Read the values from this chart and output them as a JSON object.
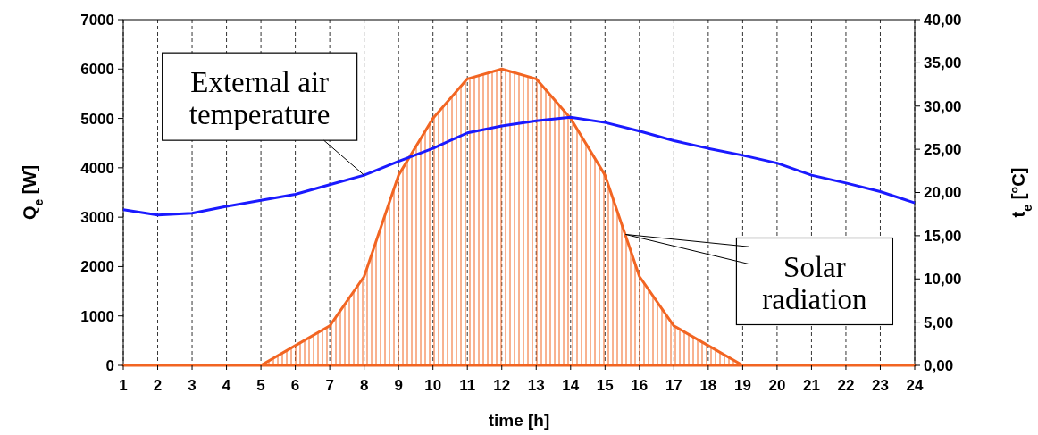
{
  "chart_data": {
    "type": "line",
    "xlabel": "time [h]",
    "ylabel": "Q$_{e}$ [W]",
    "y2label": "t$_{e}$ [°C]",
    "x": [
      1,
      2,
      3,
      4,
      5,
      6,
      7,
      8,
      9,
      10,
      11,
      12,
      13,
      14,
      15,
      16,
      17,
      18,
      19,
      20,
      21,
      22,
      23,
      24
    ],
    "xlim": [
      1,
      24
    ],
    "xticks": [
      1,
      2,
      3,
      4,
      5,
      6,
      7,
      8,
      9,
      10,
      11,
      12,
      13,
      14,
      15,
      16,
      17,
      18,
      19,
      20,
      21,
      22,
      23,
      24
    ],
    "ylim": [
      0,
      7000
    ],
    "yticks": [
      0,
      1000,
      2000,
      3000,
      4000,
      5000,
      6000,
      7000
    ],
    "y2lim": [
      0,
      40
    ],
    "y2ticks": [
      {
        "value": 0,
        "label": "0,00"
      },
      {
        "value": 5,
        "label": "5,00"
      },
      {
        "value": 10,
        "label": "10,00"
      },
      {
        "value": 15,
        "label": "15,00"
      },
      {
        "value": 20,
        "label": "20,00"
      },
      {
        "value": 25,
        "label": "25,00"
      },
      {
        "value": 30,
        "label": "30,00"
      },
      {
        "value": 35,
        "label": "35,00"
      },
      {
        "value": 40,
        "label": "40,00"
      }
    ],
    "grid": "x",
    "series": [
      {
        "type": "area",
        "color": "#f26522",
        "values": [
          0,
          0,
          0,
          0,
          0,
          400,
          800,
          1800,
          3850,
          5000,
          5800,
          6000,
          5800,
          5000,
          3850,
          1800,
          800,
          400,
          0,
          0,
          0,
          0,
          0,
          0
        ]
      },
      {
        "axis": "y2",
        "color": "#1a1aff",
        "values": [
          18.0,
          17.4,
          17.6,
          18.4,
          19.1,
          19.8,
          20.9,
          22.0,
          23.6,
          25.1,
          26.9,
          27.7,
          28.3,
          28.7,
          28.1,
          27.1,
          26.0,
          25.1,
          24.3,
          23.4,
          22.0,
          21.1,
          20.1,
          18.8
        ]
      }
    ],
    "annotations": [
      {
        "text": "External air temperature",
        "x": 8,
        "y": 3850
      },
      {
        "text": "Solar radiation",
        "x": 15.6,
        "y": 2650
      }
    ]
  }
}
